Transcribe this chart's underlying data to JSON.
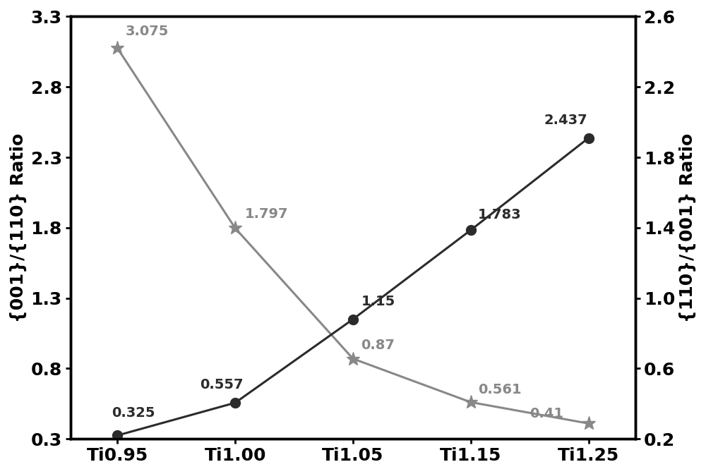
{
  "x_labels": [
    "Ti0.95",
    "Ti1.00",
    "Ti1.05",
    "Ti1.15",
    "Ti1.25"
  ],
  "x_values": [
    0,
    1,
    2,
    3,
    4
  ],
  "line1_values": [
    0.325,
    0.557,
    1.15,
    1.783,
    2.437
  ],
  "line1_labels": [
    "0.325",
    "0.557",
    "1.15",
    "1.783",
    "2.437"
  ],
  "line1_color": "#2b2b2b",
  "line1_marker": "o",
  "line2_values": [
    3.075,
    1.797,
    0.87,
    0.561,
    0.41
  ],
  "line2_labels": [
    "3.075",
    "1.797",
    "0.87",
    "0.561",
    "0.41"
  ],
  "line2_color": "#888888",
  "line2_marker": "*",
  "ylabel_left": "{001}/{110} Ratio",
  "ylabel_right": "{110}/{001} Ratio",
  "ylim_left": [
    0.3,
    3.3
  ],
  "ylim_right": [
    0.2,
    2.6
  ],
  "yticks_left": [
    0.3,
    0.8,
    1.3,
    1.8,
    2.3,
    2.8,
    3.3
  ],
  "yticks_right": [
    0.2,
    0.6,
    1.0,
    1.4,
    1.8,
    2.2,
    2.6
  ],
  "background_color": "#ffffff",
  "linewidth": 2.2,
  "markersize_circle": 10,
  "markersize_star": 14,
  "label_fontsize": 18,
  "tick_fontsize": 18,
  "annotation_fontsize": 14,
  "xlim": [
    -0.4,
    4.4
  ]
}
